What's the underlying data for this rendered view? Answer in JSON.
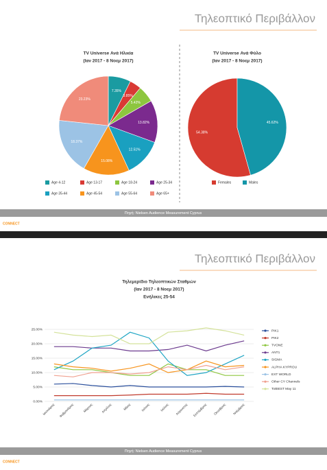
{
  "slides": [
    {
      "title": "Τηλεοπτικό Περιβάλλον",
      "source": "Πηγή: Nielsen Audience Measurement Cyprus",
      "logo": "CONNECT"
    },
    {
      "title": "Τηλεοπτικό Περιβάλλον",
      "source": "Πηγή: Nielsen Audience Measurement Cyprus",
      "logo": "CONNECT"
    }
  ],
  "chart_data": [
    {
      "type": "pie",
      "title": "TV Universe Ανά Ηλικία",
      "subtitle": [
        "(Ιαν 2017 - 8 Νοεμ 2017)"
      ],
      "categories": [
        "Age 4-12",
        "Age 13-17",
        "Age 18-24",
        "Age 25-34",
        "Age 35-44",
        "Age 45-54",
        "Age 55-64",
        "Age 65+"
      ],
      "values": [
        7.35,
        3.85,
        5.42,
        13.82,
        12.51,
        15.08,
        18.37,
        23.23
      ],
      "value_labels": [
        "7.35%",
        "3.85%",
        "5.42%",
        "13.82%",
        "12.51%",
        "15.08%",
        "18.37%",
        "23.23%"
      ],
      "colors": [
        "#1a9ba1",
        "#d93a35",
        "#8dc63f",
        "#7b2a8e",
        "#1aa0c0",
        "#f7941d",
        "#9cc3e5",
        "#f08b7a"
      ]
    },
    {
      "type": "pie",
      "title": "TV Universe Ανά Φύλο",
      "subtitle": [
        "(Ιαν 2017 - 8 Νοεμ 2017)"
      ],
      "categories": [
        "Females",
        "Males"
      ],
      "values": [
        54.38,
        45.62
      ],
      "value_labels": [
        "54.38%",
        "45.62%"
      ],
      "colors": [
        "#d63b30",
        "#1496a8"
      ],
      "counterclock": true
    },
    {
      "type": "line",
      "title": "Τηλεμερίδιο Τηλεοπτικών Σταθμών",
      "subtitle": [
        "(Ιαν 2017 - 8 Νοεμ 2017)",
        "Ενήλικες 25-54"
      ],
      "categories": [
        "Ιανουάριος",
        "Φεβρουάριος",
        "Μάρτιος",
        "Απρίλιος",
        "Μάιος",
        "Ιούνιος",
        "Ιούλιος",
        "Αύγουστος",
        "Σεπτέμβριος",
        "Οκτώβριος",
        "Νοέμβριος"
      ],
      "ylim": [
        0,
        25
      ],
      "yticks": [
        {
          "value": 0,
          "label": "0.00%"
        },
        {
          "value": 5,
          "label": "5.00%"
        },
        {
          "value": 10,
          "label": "10.00%"
        },
        {
          "value": 15,
          "label": "15.00%"
        },
        {
          "value": 20,
          "label": "20.00%"
        },
        {
          "value": 25,
          "label": "25.00%"
        }
      ],
      "grid": true,
      "series": [
        {
          "name": "PIK1",
          "color": "#2a4f9c",
          "values": [
            6,
            6.2,
            5.5,
            5,
            5.5,
            5,
            5,
            5,
            5,
            5.2,
            5
          ]
        },
        {
          "name": "PIK2",
          "color": "#c0392b",
          "values": [
            2,
            2,
            2,
            2,
            2.2,
            2.5,
            2.5,
            2.5,
            2.8,
            2.5,
            2.5
          ]
        },
        {
          "name": "TVONE",
          "color": "#8dc63f",
          "values": [
            12,
            11,
            11,
            10,
            9,
            9,
            13,
            11,
            11,
            9,
            9
          ]
        },
        {
          "name": "ANT1",
          "color": "#6b3a8e",
          "values": [
            19,
            19,
            18.5,
            18.5,
            17.5,
            17.5,
            18,
            19.5,
            17.5,
            19.5,
            21
          ]
        },
        {
          "name": "SIGMA",
          "color": "#1fa5c4",
          "values": [
            11,
            14,
            18.5,
            19.5,
            24,
            22,
            14,
            9,
            10,
            13,
            16
          ]
        },
        {
          "name": "ALPHA KYPROU",
          "color": "#f7941d",
          "values": [
            13,
            12,
            11.5,
            10.5,
            11.5,
            13,
            10,
            11,
            14,
            12,
            12.5
          ]
        },
        {
          "name": "EXT WORLD",
          "color": "#9cc3e5",
          "values": [
            0.5,
            0.5,
            0.5,
            0.5,
            0.5,
            0.5,
            0.5,
            0.5,
            0.5,
            0.5,
            0.5
          ]
        },
        {
          "name": "Other CY Channels",
          "color": "#f0a08f",
          "values": [
            9,
            8.5,
            10,
            10,
            9.5,
            10,
            12,
            11,
            12.5,
            11,
            12
          ]
        },
        {
          "name": "TotBEST May 11",
          "color": "#d4e29a",
          "values": [
            24,
            23,
            22.5,
            23,
            20,
            20,
            24,
            24.5,
            25.5,
            24.5,
            23
          ]
        }
      ]
    }
  ]
}
